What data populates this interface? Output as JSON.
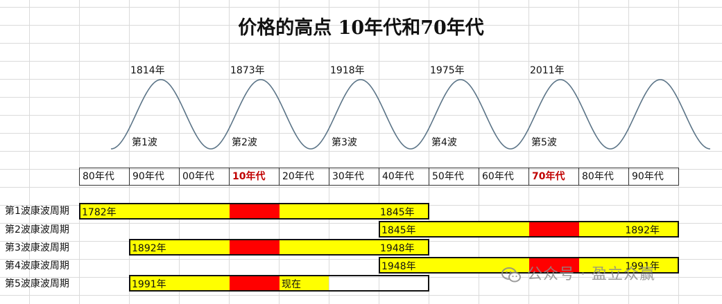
{
  "title": "价格的高点 10年代和70年代",
  "peaks": [
    {
      "label": "1814年"
    },
    {
      "label": "1873年"
    },
    {
      "label": "1918年"
    },
    {
      "label": "1975年"
    },
    {
      "label": "2011年"
    }
  ],
  "waves": [
    {
      "label": "第1波"
    },
    {
      "label": "第2波"
    },
    {
      "label": "第3波"
    },
    {
      "label": "第4波"
    },
    {
      "label": "第5波"
    }
  ],
  "decades": [
    "80年代",
    "90年代",
    "00年代",
    "10年代",
    "20年代",
    "30年代",
    "40年代",
    "50年代",
    "60年代",
    "70年代",
    "80年代",
    "90年代"
  ],
  "highlighted_decades": [
    3,
    9
  ],
  "cycles": [
    {
      "name": "第1波康波周期",
      "start_label": "1782年",
      "end_label": "1845年"
    },
    {
      "name": "第2波康波周期",
      "start_label": "1845年",
      "end_label": "1892年"
    },
    {
      "name": "第3波康波周期",
      "start_label": "1892年",
      "end_label": "1948年"
    },
    {
      "name": "第4波康波周期",
      "start_label": "1948年",
      "end_label": "1991年"
    },
    {
      "name": "第5波康波周期",
      "start_label": "1991年",
      "end_label": "现在"
    }
  ],
  "colors": {
    "phase": "#ffff00",
    "peak_phase": "#ff0000",
    "highlight_text": "#c00000",
    "wave_line": "#5b7487"
  },
  "watermark": {
    "text": "公众号 · 盈立众赢",
    "icon": "wechat-icon"
  }
}
